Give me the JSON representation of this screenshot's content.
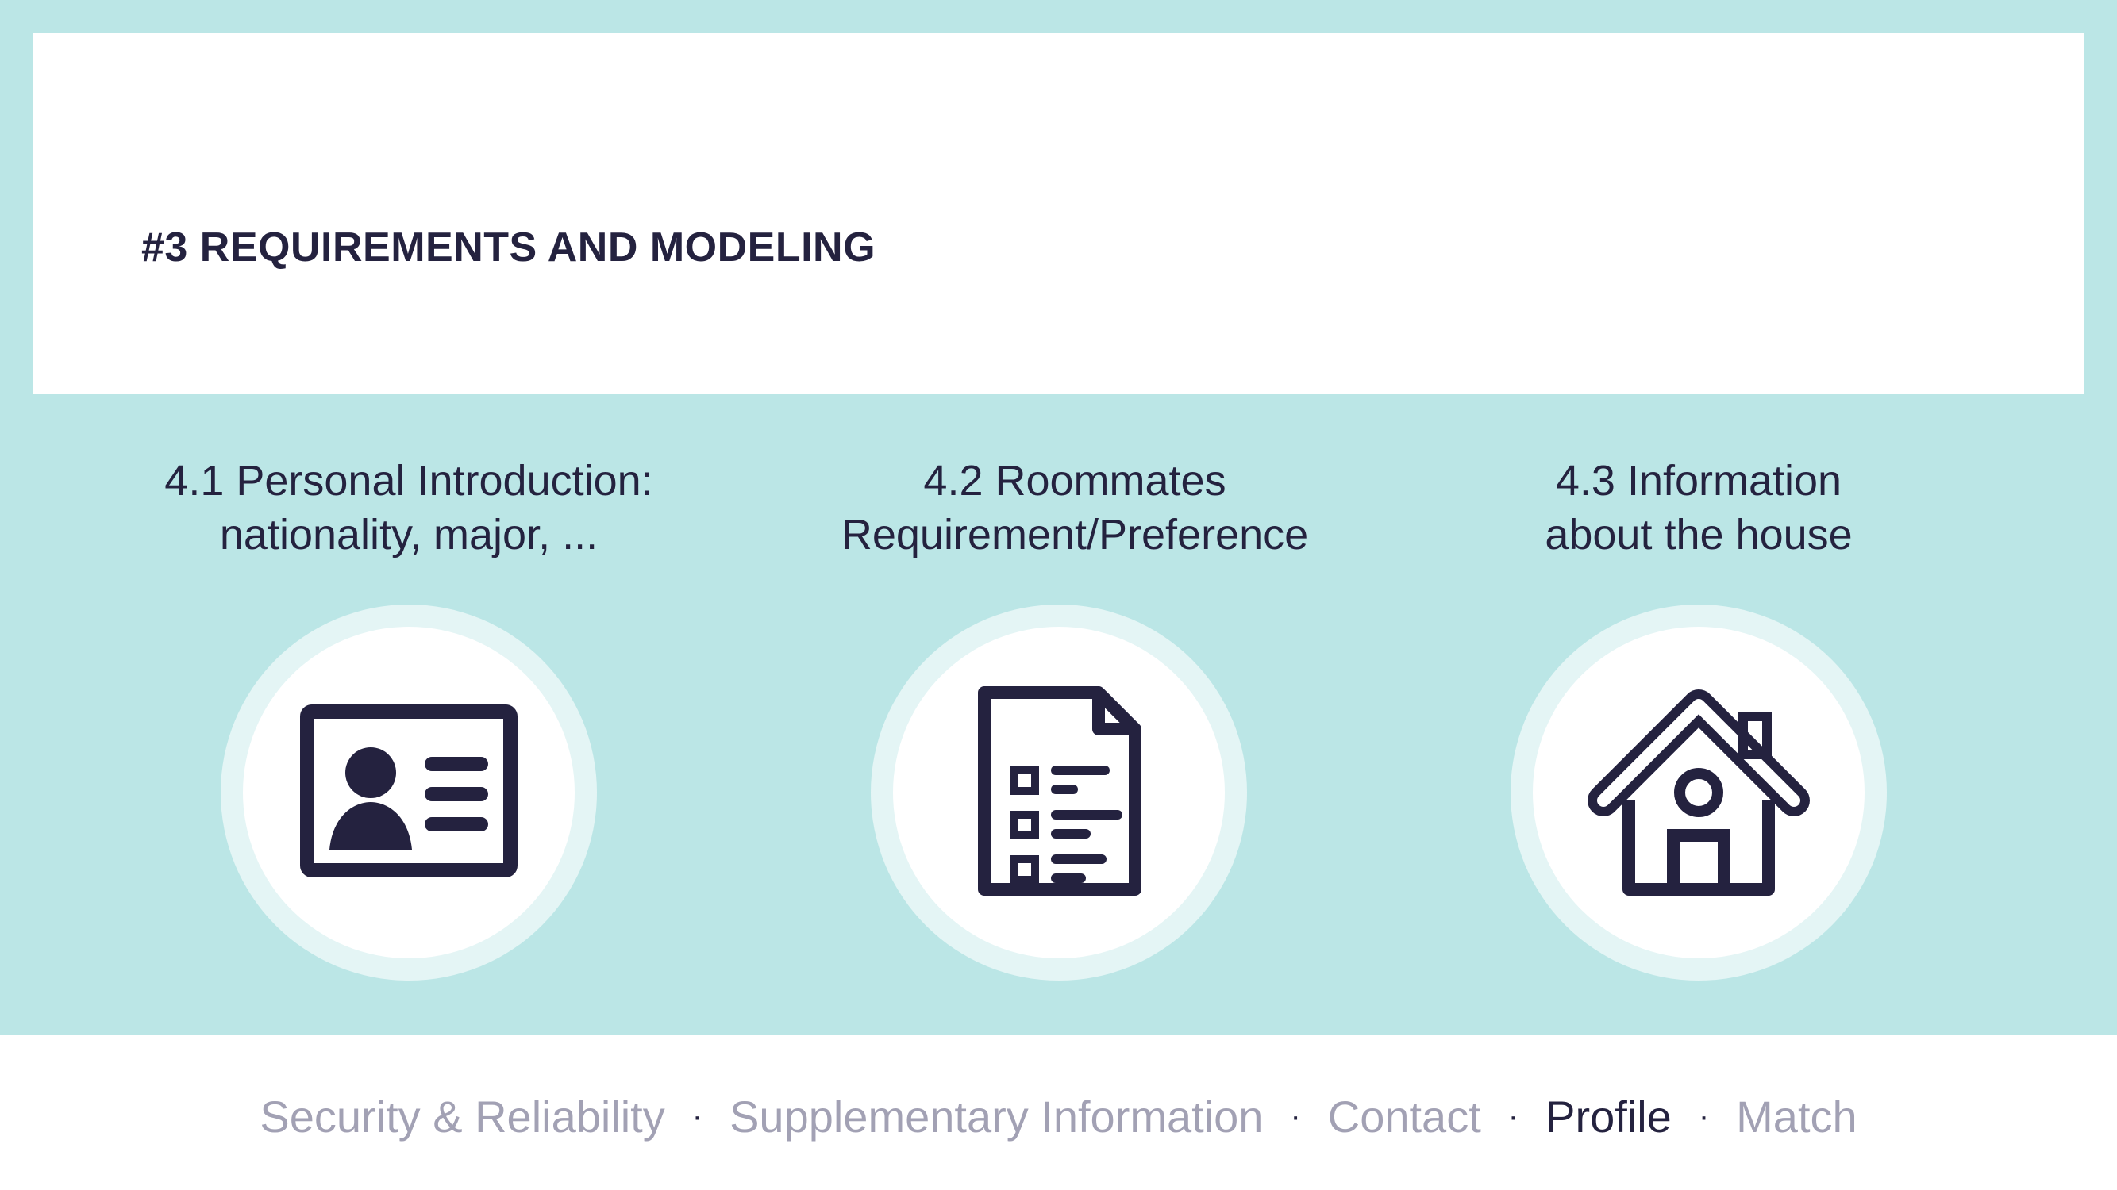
{
  "slide": {
    "title": "#3 REQUIREMENTS AND MODELING"
  },
  "features": [
    {
      "line1": "4.1 Personal Introduction:",
      "line2": "nationality, major, ...",
      "icon": "id-card-icon"
    },
    {
      "line1": "4.2 Roommates",
      "line2": "Requirement/Preference",
      "icon": "checklist-document-icon"
    },
    {
      "line1": "4.3 Information",
      "line2": "about the house",
      "icon": "house-icon"
    }
  ],
  "footer_nav": {
    "separator": "·",
    "items": [
      {
        "label": "Security & Reliability",
        "active": false
      },
      {
        "label": "Supplementary Information",
        "active": false
      },
      {
        "label": "Contact",
        "active": false
      },
      {
        "label": "Profile",
        "active": true
      },
      {
        "label": "Match",
        "active": false
      }
    ]
  },
  "colors": {
    "background": "#bbe6e6",
    "card": "#ffffff",
    "text_dark": "#24223f",
    "nav_inactive": "#a2a1b4",
    "icon_ring": "#e4f5f5"
  }
}
